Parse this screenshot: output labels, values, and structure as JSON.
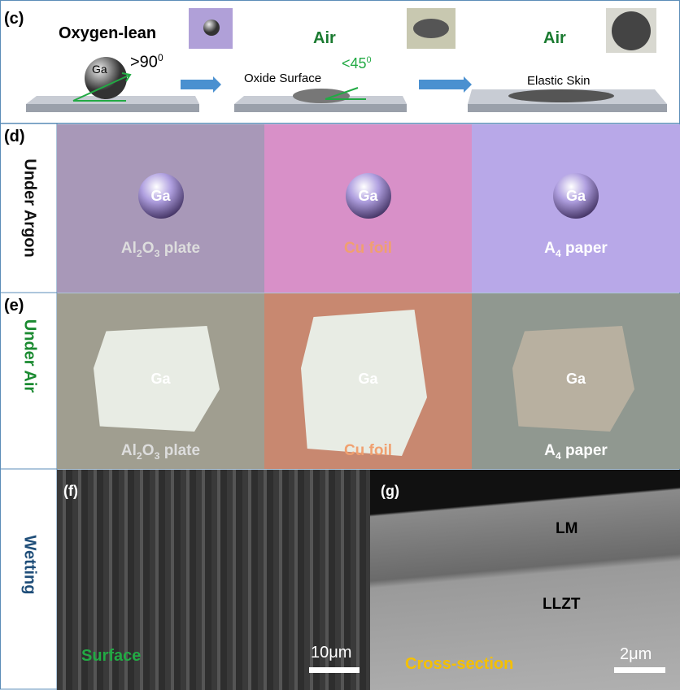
{
  "panel_c": {
    "label": "(c)",
    "states": [
      {
        "title": "Oxygen-lean",
        "droplet": "Ga",
        "angle": ">90",
        "angle_sup": "0"
      },
      {
        "title": "Air",
        "note": "Oxide Surface",
        "angle": "<45",
        "angle_sup": "0"
      },
      {
        "title": "Air",
        "note": "Elastic Skin"
      }
    ]
  },
  "panel_d": {
    "label": "(d)",
    "side_label": "Under Argon",
    "photos": [
      {
        "droplet": "Ga",
        "substrate": [
          {
            "text": "Al"
          },
          {
            "text": "2",
            "sub": true
          },
          {
            "text": "O"
          },
          {
            "text": "3",
            "sub": true
          },
          {
            "text": " plate"
          }
        ]
      },
      {
        "droplet": "Ga",
        "substrate": [
          {
            "text": "Cu foil"
          }
        ]
      },
      {
        "droplet": "Ga",
        "substrate": [
          {
            "text": "A"
          },
          {
            "text": "4",
            "sub": true
          },
          {
            "text": " paper"
          }
        ]
      }
    ]
  },
  "panel_e": {
    "label": "(e)",
    "side_label": "Under Air",
    "photos": [
      {
        "droplet": "Ga",
        "substrate": [
          {
            "text": "Al"
          },
          {
            "text": "2",
            "sub": true
          },
          {
            "text": "O"
          },
          {
            "text": "3",
            "sub": true
          },
          {
            "text": " plate"
          }
        ]
      },
      {
        "droplet": "Ga",
        "substrate": [
          {
            "text": "Cu foil"
          }
        ]
      },
      {
        "droplet": "Ga",
        "substrate": [
          {
            "text": "A"
          },
          {
            "text": "4",
            "sub": true
          },
          {
            "text": " paper"
          }
        ]
      }
    ]
  },
  "panel_fg": {
    "side_label": "Wetting",
    "f": {
      "label": "(f)",
      "caption": "Surface",
      "scale": "10μm"
    },
    "g": {
      "label": "(g)",
      "caption": "Cross-section",
      "scale": "2μm",
      "layers": [
        "LM",
        "LLZT"
      ]
    }
  }
}
